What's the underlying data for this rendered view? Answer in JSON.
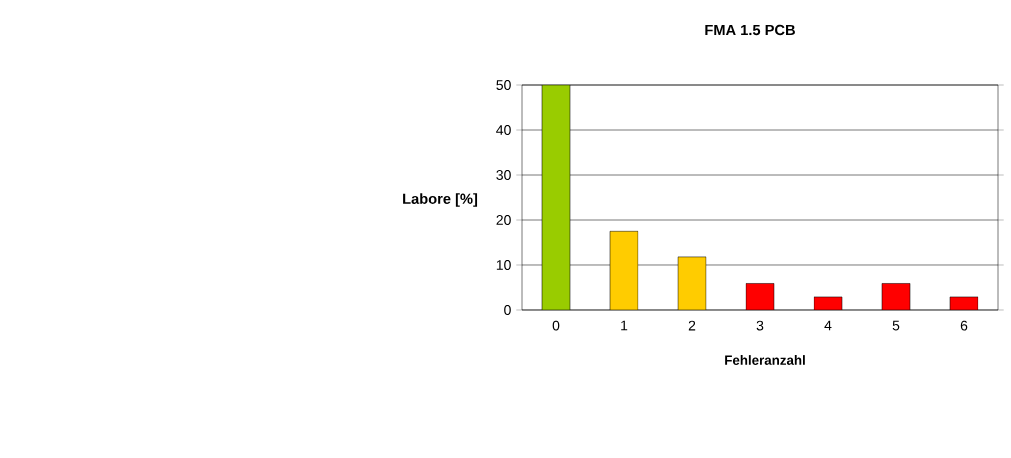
{
  "chart_data": {
    "type": "bar",
    "title": "FMA 1.5 PCB",
    "xlabel": "Fehleranzahl",
    "ylabel": "Labore [%]",
    "categories": [
      "0",
      "1",
      "2",
      "3",
      "4",
      "5",
      "6"
    ],
    "values": [
      50,
      17.5,
      11.8,
      5.9,
      2.9,
      5.9,
      2.9
    ],
    "colors": [
      "#99cc00",
      "#ffcc00",
      "#ffcc00",
      "#ff0000",
      "#ff0000",
      "#ff0000",
      "#ff0000"
    ],
    "ylim": [
      0,
      50
    ],
    "yticks": [
      0,
      10,
      20,
      30,
      40,
      50
    ],
    "grid": "y"
  }
}
